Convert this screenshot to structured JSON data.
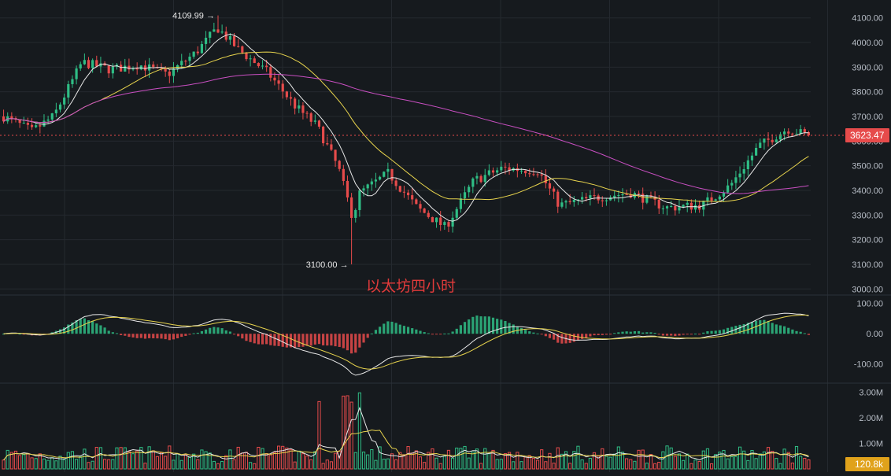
{
  "colors": {
    "background": "#161a1e",
    "grid": "#24292f",
    "up": "#2fbd85",
    "down": "#e64b4b",
    "axis_text": "#b7bdc6",
    "ma_fast": "#e8e8e8",
    "ma_mid": "#e8d44d",
    "ma_slow": "#c94fc2",
    "annotation_text": "#e23b3b",
    "price_tag": "#e64b4b",
    "volume_tag": "#e0a21b"
  },
  "chart_data": [
    {
      "type": "candlestick",
      "annotation": "以太坊四小时",
      "y_ticks": [
        "4100.00",
        "4000.00",
        "3900.00",
        "3800.00",
        "3700.00",
        "3600.00",
        "3500.00",
        "3400.00",
        "3300.00",
        "3200.00",
        "3100.00",
        "3000.00"
      ],
      "ylim": [
        2985,
        4115
      ],
      "high_label": "4109.99 →",
      "low_label": "3100.00 →",
      "high_value": 4109.99,
      "low_value": 3100.0,
      "last_price": 3623.47,
      "last_price_label": "3623.47",
      "moving_averages": [
        {
          "color": "ma_fast",
          "period": "short"
        },
        {
          "color": "ma_mid",
          "period": "medium"
        },
        {
          "color": "ma_slow",
          "period": "long"
        }
      ],
      "candle_count": 200,
      "price_path_anchors": [
        [
          0,
          3700
        ],
        [
          8,
          3640
        ],
        [
          14,
          3700
        ],
        [
          22,
          3920
        ],
        [
          30,
          3890
        ],
        [
          38,
          3910
        ],
        [
          46,
          3870
        ],
        [
          54,
          3960
        ],
        [
          60,
          4060
        ],
        [
          66,
          3970
        ],
        [
          74,
          3880
        ],
        [
          82,
          3740
        ],
        [
          88,
          3660
        ],
        [
          94,
          3490
        ],
        [
          98,
          3290
        ],
        [
          100,
          3390
        ],
        [
          108,
          3470
        ],
        [
          116,
          3330
        ],
        [
          124,
          3250
        ],
        [
          132,
          3440
        ],
        [
          140,
          3490
        ],
        [
          150,
          3480
        ],
        [
          156,
          3340
        ],
        [
          166,
          3370
        ],
        [
          176,
          3390
        ],
        [
          186,
          3330
        ],
        [
          196,
          3340
        ],
        [
          204,
          3420
        ],
        [
          212,
          3580
        ],
        [
          220,
          3650
        ],
        [
          226,
          3623
        ]
      ]
    },
    {
      "type": "macd",
      "y_ticks": [
        "100.00",
        "0.00",
        "-100.00"
      ],
      "ylim": [
        -150,
        120
      ]
    },
    {
      "type": "volume",
      "y_ticks": [
        "3.00M",
        "2.00M",
        "1.00M"
      ],
      "ylim": [
        0,
        3200000
      ],
      "last_volume_label": "120.8k"
    }
  ]
}
